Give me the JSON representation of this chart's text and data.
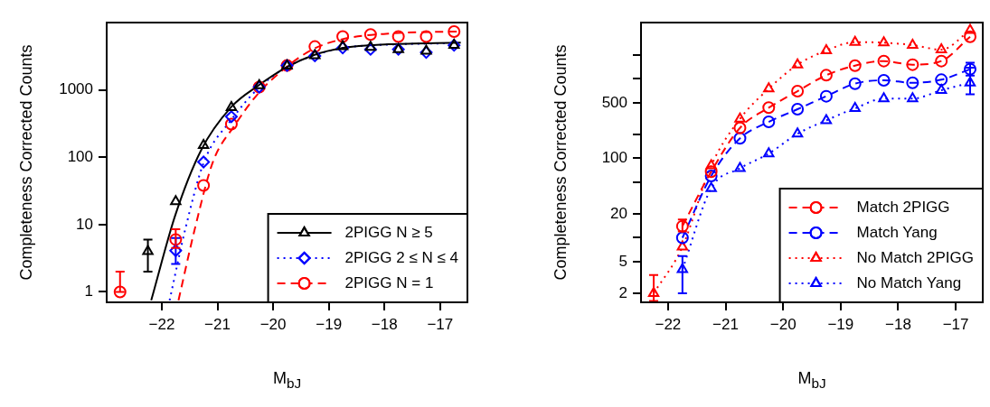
{
  "chart_data": [
    {
      "type": "scatter",
      "xlabel": "M$_{bJ}$",
      "ylabel": "Completeness Corrected Counts",
      "log": "y",
      "legend": "bottom right",
      "xlim": [
        -22.99,
        -16.51
      ],
      "ylim": [
        0.74,
        10000
      ],
      "xticks": [
        {
          "value": -22,
          "label": "−22"
        },
        {
          "value": -21,
          "label": "−21"
        },
        {
          "value": -20,
          "label": "−20"
        },
        {
          "value": -19,
          "label": "−19"
        },
        {
          "value": -18,
          "label": "−18"
        },
        {
          "value": -17,
          "label": "−17"
        }
      ],
      "yticks": [
        1,
        10,
        100,
        1000
      ],
      "x": [
        -22.75,
        -22.25,
        -21.75,
        -21.25,
        -20.75,
        -20.25,
        -19.75,
        -19.25,
        -18.75,
        -18.25,
        -17.75,
        -17.25,
        -16.75
      ],
      "series": [
        {
          "name": "2PIGG N ≥ 5",
          "color": "#000000",
          "marker": "triangle",
          "line_style": "solid",
          "values": [
            null,
            4.0,
            22,
            150,
            550,
            1160,
            2270,
            3240,
            4400,
            4300,
            4000,
            3780,
            4640
          ],
          "errors": [
            null,
            [
              2.0,
              6.0
            ],
            null,
            null,
            null,
            null,
            null,
            null,
            null,
            null,
            null,
            null,
            null
          ]
        },
        {
          "name": "2PIGG 2 ≤ N ≤ 4",
          "color": "#0000ff",
          "marker": "diamond",
          "line_style": "dotted",
          "values": [
            null,
            null,
            4.1,
            85,
            400,
            1100,
            2300,
            3200,
            4200,
            4000,
            4000,
            3600,
            4600
          ],
          "errors": [
            null,
            null,
            [
              2.6,
              6.3
            ],
            null,
            null,
            null,
            null,
            null,
            null,
            null,
            null,
            null,
            null
          ]
        },
        {
          "name": "2PIGG N = 1",
          "color": "#ff0000",
          "marker": "circle",
          "line_style": "dashed",
          "values": [
            1.0,
            null,
            6.0,
            38,
            310,
            1100,
            2300,
            4400,
            6200,
            6650,
            6200,
            6200,
            7360
          ],
          "errors": [
            [
              1.0,
              2.0
            ],
            null,
            [
              4.5,
              8.5
            ],
            null,
            null,
            null,
            null,
            null,
            null,
            null,
            null,
            null,
            null
          ]
        },
        {
          "type": "line",
          "color": "#000000",
          "marker": "none",
          "line_style": "solid",
          "x": [
            -22.19,
            -21.76,
            -21.29,
            -20.75,
            -20.26,
            -19.77,
            -19.29,
            -18.74,
            -17.93,
            -16.63
          ],
          "values": [
            0.75,
            13.6,
            129,
            560,
            1170,
            2150,
            3240,
            4200,
            4750,
            5050
          ]
        },
        {
          "type": "line",
          "color": "#0000ff",
          "marker": "none",
          "line_style": "dotted",
          "x": [
            -21.86,
            -21.57,
            -21.24,
            -20.75,
            -20.26,
            -19.77,
            -19.29,
            -18.74,
            -17.93,
            -16.63
          ],
          "values": [
            0.75,
            9.1,
            86,
            360,
            1070,
            2150,
            3200,
            4200,
            4700,
            4950
          ]
        },
        {
          "type": "line",
          "color": "#ff0000",
          "marker": "none",
          "line_style": "dashed",
          "x": [
            -21.7,
            -21.4,
            -21.08,
            -20.7,
            -20.26,
            -19.77,
            -19.29,
            -18.74,
            -17.93,
            -16.63
          ],
          "values": [
            0.75,
            9.1,
            86,
            290,
            900,
            2150,
            4000,
            5700,
            6850,
            7400
          ]
        }
      ]
    },
    {
      "type": "line",
      "xlabel": "M$_{bJ}$",
      "ylabel": "Completeness Corrected Counts",
      "log": "y",
      "legend": "bottom right",
      "xlim": [
        -22.47,
        -16.53
      ],
      "ylim": [
        1.54,
        5130
      ],
      "xticks": [
        {
          "value": -22,
          "label": "−22"
        },
        {
          "value": -21,
          "label": "−21"
        },
        {
          "value": -20,
          "label": "−20"
        },
        {
          "value": -19,
          "label": "−19"
        },
        {
          "value": -18,
          "label": "−18"
        },
        {
          "value": -17,
          "label": "−17"
        }
      ],
      "yticks": [
        2,
        5,
        {
          "value": 10,
          "label": null
        },
        20,
        {
          "value": 50,
          "label": null
        },
        100,
        {
          "value": 200,
          "label": null
        },
        500,
        {
          "value": 1000,
          "label": null
        },
        {
          "value": 2000,
          "label": null
        }
      ],
      "x": [
        -22.25,
        -21.75,
        -21.25,
        -20.75,
        -20.25,
        -19.75,
        -19.25,
        -18.75,
        -18.25,
        -17.75,
        -17.25,
        -16.75
      ],
      "series": [
        {
          "name": "Match 2PIGG",
          "color": "#ff0000",
          "marker": "circle",
          "line_style": "dashed",
          "values": [
            null,
            14,
            68,
            242,
            435,
            702,
            1115,
            1473,
            1680,
            1514,
            1680,
            3400
          ],
          "errors": [
            null,
            [
              12,
              17
            ],
            null,
            null,
            null,
            null,
            null,
            null,
            null,
            null,
            null,
            null
          ]
        },
        {
          "name": "Match Yang",
          "color": "#0000ff",
          "marker": "circle",
          "line_style": "dashed",
          "values": [
            null,
            10,
            60,
            179,
            288,
            416,
            606,
            873,
            962,
            895,
            978,
            1328
          ],
          "errors": [
            null,
            null,
            null,
            null,
            null,
            null,
            null,
            null,
            null,
            null,
            null,
            [
              1100,
              1600
            ]
          ]
        },
        {
          "name": "No Match 2PIGG",
          "color": "#ff0000",
          "marker": "triangle",
          "line_style": "dotted",
          "values": [
            2.0,
            7.7,
            81,
            315,
            753,
            1513,
            2280,
            2910,
            2860,
            2670,
            2340,
            4120
          ],
          "errors": [
            [
              1.6,
              3.4
            ],
            null,
            null,
            null,
            null,
            null,
            null,
            null,
            null,
            null,
            null,
            null
          ]
        },
        {
          "name": "No Match Yang",
          "color": "#0000ff",
          "marker": "triangle",
          "line_style": "dotted",
          "values": [
            null,
            4.0,
            42,
            75,
            115,
            204,
            301,
            427,
            565,
            565,
            721,
            897
          ],
          "errors": [
            null,
            [
              2.0,
              5.9
            ],
            null,
            null,
            null,
            null,
            null,
            null,
            null,
            null,
            null,
            [
              640,
              1390
            ]
          ]
        }
      ]
    }
  ]
}
